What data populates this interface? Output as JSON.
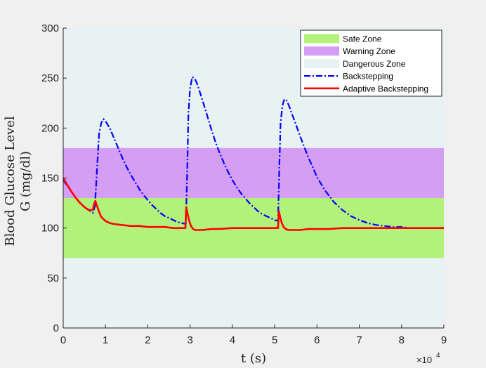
{
  "chart_data": {
    "type": "line",
    "xlabel": "t (s)",
    "ylabel_line1": "Blood Glucose Level",
    "ylabel_line2": "G (mg/dl)",
    "x_exponent_label": "×10",
    "x_exponent_power": "4",
    "xlim": [
      0,
      90000
    ],
    "ylim": [
      0,
      300
    ],
    "x_ticks": [
      0,
      10000,
      20000,
      30000,
      40000,
      50000,
      60000,
      70000,
      80000,
      90000
    ],
    "x_tick_labels": [
      "0",
      "1",
      "2",
      "3",
      "4",
      "5",
      "6",
      "7",
      "8",
      "9"
    ],
    "y_ticks": [
      0,
      50,
      100,
      150,
      200,
      250,
      300
    ],
    "y_tick_labels": [
      "0",
      "50",
      "100",
      "150",
      "200",
      "250",
      "300"
    ],
    "grid": false,
    "legend_placement": "top-right",
    "zones": [
      {
        "name": "Dangerous Zone",
        "from": 0,
        "to": 300,
        "color": "#e8f2f2"
      },
      {
        "name": "Warning Zone",
        "from": 70,
        "to": 180,
        "color": "#d59ef5"
      },
      {
        "name": "Safe Zone",
        "from": 70,
        "to": 130,
        "color": "#b3f27a"
      }
    ],
    "legend": [
      {
        "label": "Safe Zone",
        "kind": "patch",
        "color": "#b3f27a"
      },
      {
        "label": "Warning Zone",
        "kind": "patch",
        "color": "#d59ef5"
      },
      {
        "label": "Dangerous Zone",
        "kind": "patch",
        "color": "#e8f2f2"
      },
      {
        "label": "Backstepping",
        "kind": "line",
        "color": "#0000ff",
        "dash": "dashdot"
      },
      {
        "label": "Adaptive Backstepping",
        "kind": "line",
        "color": "#ff0000",
        "dash": "solid"
      }
    ],
    "series": [
      {
        "name": "Backstepping",
        "color": "#0000ff",
        "dash": "dashdot",
        "x": [
          0,
          1000,
          2000,
          3000,
          4000,
          5000,
          6000,
          7000,
          7500,
          8000,
          8500,
          9000,
          9500,
          10000,
          11000,
          12000,
          13000,
          14000,
          15000,
          16000,
          17000,
          18000,
          19000,
          20000,
          21000,
          22000,
          23000,
          24000,
          25000,
          26000,
          27000,
          28000,
          29000,
          29300,
          29600,
          30000,
          30500,
          31000,
          31500,
          32000,
          33000,
          34000,
          35000,
          36000,
          37000,
          38000,
          39000,
          40000,
          41000,
          42000,
          43000,
          44000,
          45000,
          46000,
          47000,
          48000,
          49000,
          50000,
          50800,
          51100,
          51400,
          51800,
          52200,
          52600,
          53000,
          53500,
          54000,
          55000,
          56000,
          57000,
          58000,
          59000,
          60000,
          62000,
          64000,
          66000,
          68000,
          70000,
          72000,
          74000,
          76000,
          78000,
          80000,
          82000,
          84000,
          86000,
          88000,
          90000
        ],
        "y": [
          148,
          142,
          136,
          130,
          125,
          121,
          118,
          115,
          122,
          160,
          195,
          205,
          209,
          207,
          200,
          190,
          180,
          170,
          161,
          153,
          146,
          139,
          133,
          128,
          123,
          119,
          115,
          112,
          110,
          108,
          106,
          105,
          104,
          155,
          215,
          240,
          251,
          250,
          246,
          240,
          227,
          213,
          199,
          186,
          175,
          165,
          156,
          148,
          141,
          135,
          130,
          125,
          121,
          117,
          114,
          112,
          110,
          108,
          107,
          160,
          205,
          222,
          228,
          229,
          226,
          221,
          215,
          204,
          192,
          181,
          170,
          161,
          151,
          137,
          126,
          118,
          112,
          108,
          105,
          103,
          102,
          101,
          101,
          100,
          100,
          100,
          100,
          100
        ]
      },
      {
        "name": "Adaptive Backstepping",
        "color": "#ff0000",
        "dash": "solid",
        "x": [
          0,
          1000,
          2000,
          3000,
          4000,
          5000,
          6000,
          7000,
          7300,
          7600,
          8000,
          8500,
          9000,
          10000,
          11000,
          12000,
          14000,
          16000,
          18000,
          20000,
          22000,
          24000,
          26000,
          28000,
          28900,
          29100,
          29400,
          29800,
          30200,
          30700,
          31200,
          32000,
          33000,
          35000,
          37000,
          40000,
          43000,
          46000,
          49000,
          50800,
          51000,
          51300,
          51700,
          52100,
          52600,
          53200,
          54000,
          56000,
          58000,
          60000,
          63000,
          66000,
          70000,
          75000,
          80000,
          85000,
          90000
        ],
        "y": [
          150,
          143,
          136,
          130,
          125,
          121,
          118,
          118,
          124,
          127,
          122,
          116,
          111,
          107,
          105,
          104,
          103,
          102,
          102,
          101,
          101,
          101,
          100,
          100,
          100,
          121,
          114,
          107,
          102,
          99,
          98,
          98,
          98,
          99,
          99,
          100,
          100,
          100,
          100,
          100,
          117,
          111,
          105,
          101,
          99,
          98,
          98,
          98,
          99,
          99,
          99,
          100,
          100,
          100,
          100,
          100,
          100
        ]
      }
    ]
  }
}
